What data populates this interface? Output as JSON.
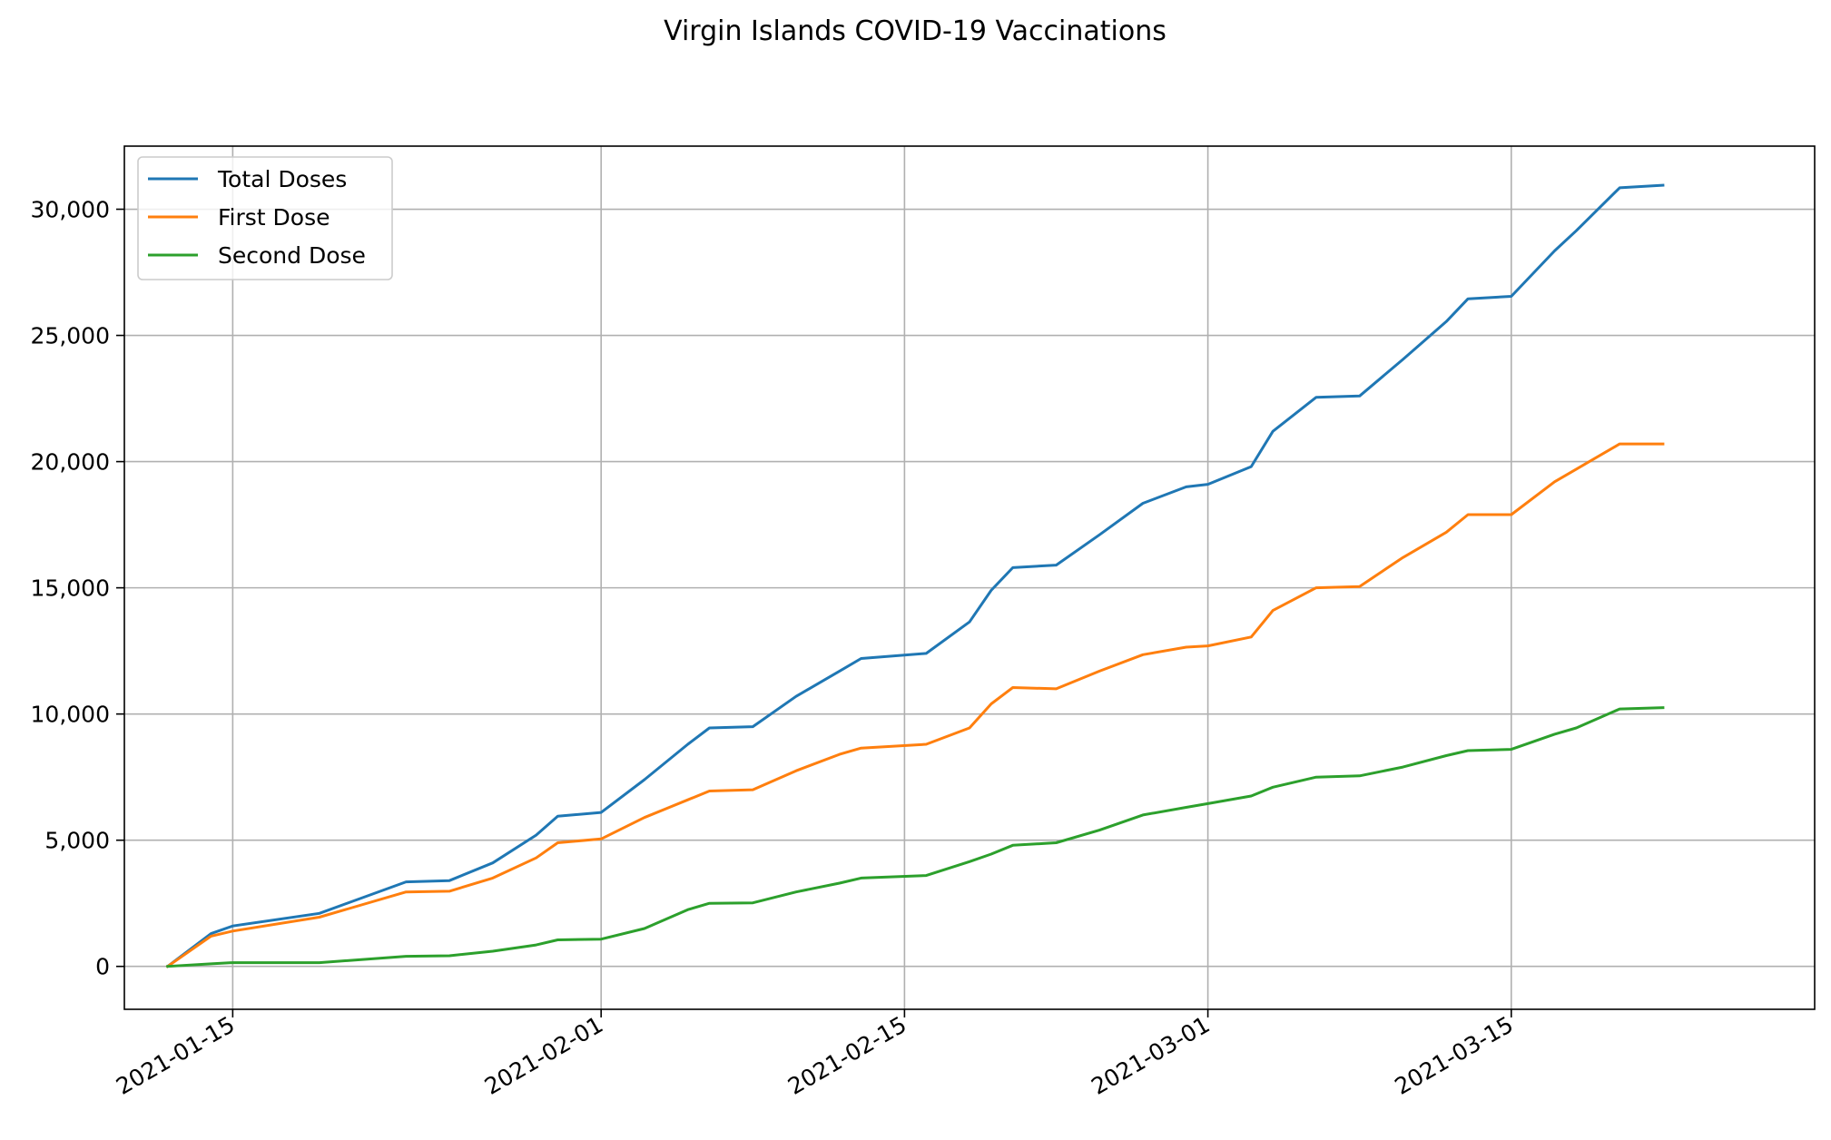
{
  "chart_data": {
    "type": "line",
    "title": "Virgin Islands COVID-19 Vaccinations",
    "xlabel": "",
    "ylabel": "",
    "grid": true,
    "legend_position": "top-left",
    "x_axis": {
      "type": "date",
      "range": [
        "2021-01-10",
        "2021-03-29"
      ],
      "ticks": [
        "2021-01-15",
        "2021-02-01",
        "2021-02-15",
        "2021-03-01",
        "2021-03-15"
      ]
    },
    "y_axis": {
      "range": [
        -1700,
        32500
      ],
      "ticks": [
        0,
        5000,
        10000,
        15000,
        20000,
        25000,
        30000
      ],
      "tick_labels": [
        "0",
        "5,000",
        "10,000",
        "15,000",
        "20,000",
        "25,000",
        "30,000"
      ]
    },
    "x": [
      "2021-01-12",
      "2021-01-14",
      "2021-01-15",
      "2021-01-19",
      "2021-01-23",
      "2021-01-25",
      "2021-01-27",
      "2021-01-29",
      "2021-01-30",
      "2021-02-01",
      "2021-02-03",
      "2021-02-05",
      "2021-02-06",
      "2021-02-08",
      "2021-02-10",
      "2021-02-12",
      "2021-02-13",
      "2021-02-16",
      "2021-02-18",
      "2021-02-19",
      "2021-02-20",
      "2021-02-22",
      "2021-02-24",
      "2021-02-26",
      "2021-02-28",
      "2021-03-01",
      "2021-03-03",
      "2021-03-04",
      "2021-03-06",
      "2021-03-08",
      "2021-03-10",
      "2021-03-12",
      "2021-03-13",
      "2021-03-15",
      "2021-03-17",
      "2021-03-18",
      "2021-03-20",
      "2021-03-22"
    ],
    "series": [
      {
        "name": "Total Doses",
        "color": "#1f77b4",
        "values": [
          0,
          1300,
          1600,
          2100,
          3350,
          3400,
          4100,
          5200,
          5950,
          6100,
          7400,
          8800,
          9450,
          9500,
          10700,
          11700,
          12200,
          12400,
          13650,
          14900,
          15800,
          15900,
          17100,
          18350,
          19000,
          19100,
          19800,
          21200,
          22550,
          22600,
          24050,
          25550,
          26450,
          26550,
          28350,
          29150,
          30850,
          30950
        ]
      },
      {
        "name": "First Dose",
        "color": "#ff7f0e",
        "values": [
          0,
          1200,
          1400,
          1950,
          2950,
          2980,
          3500,
          4300,
          4900,
          5050,
          5900,
          6600,
          6950,
          7000,
          7750,
          8400,
          8650,
          8800,
          9450,
          10400,
          11050,
          11000,
          11700,
          12350,
          12650,
          12700,
          13050,
          14100,
          15000,
          15050,
          16200,
          17200,
          17900,
          17900,
          19200,
          19700,
          20700,
          20700
        ]
      },
      {
        "name": "Second Dose",
        "color": "#2ca02c",
        "values": [
          0,
          100,
          150,
          150,
          400,
          420,
          600,
          850,
          1050,
          1080,
          1500,
          2250,
          2500,
          2520,
          2950,
          3300,
          3500,
          3600,
          4150,
          4450,
          4800,
          4900,
          5400,
          6000,
          6300,
          6450,
          6750,
          7100,
          7500,
          7550,
          7900,
          8350,
          8550,
          8600,
          9200,
          9450,
          10200,
          10250
        ]
      }
    ]
  }
}
